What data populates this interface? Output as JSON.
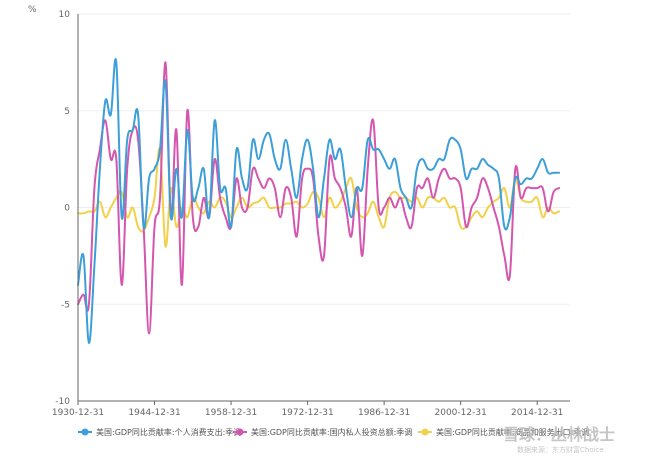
{
  "chart_data": {
    "type": "line",
    "y_unit": "%",
    "ylim": [
      -10,
      10
    ],
    "yticks": [
      -10,
      -5,
      0,
      5,
      10
    ],
    "xlim": [
      1930,
      2020
    ],
    "xtick_labels": [
      "1930-12-31",
      "1944-12-31",
      "1958-12-31",
      "1972-12-31",
      "1986-12-31",
      "2000-12-31",
      "2014-12-31"
    ],
    "xtick_years": [
      1930,
      1944,
      1958,
      1972,
      1986,
      2000,
      2014
    ],
    "grid": "horizontal",
    "legend_position": "bottom",
    "series": [
      {
        "name": "美国:GDP同比贡献率:个人消费支出:季调",
        "color": "#3d9fd8",
        "points": [
          [
            1930,
            -4
          ],
          [
            1931,
            -2.5
          ],
          [
            1932,
            -7
          ],
          [
            1933,
            -3
          ],
          [
            1934,
            2
          ],
          [
            1935,
            5.5
          ],
          [
            1936,
            4.8
          ],
          [
            1937,
            7.5
          ],
          [
            1938,
            -0.5
          ],
          [
            1939,
            3.5
          ],
          [
            1940,
            4
          ],
          [
            1941,
            4.8
          ],
          [
            1942,
            -1
          ],
          [
            1943,
            1.5
          ],
          [
            1944,
            2
          ],
          [
            1945,
            3
          ],
          [
            1946,
            6.5
          ],
          [
            1947,
            -0.5
          ],
          [
            1948,
            2
          ],
          [
            1949,
            -0.5
          ],
          [
            1950,
            4
          ],
          [
            1951,
            0.5
          ],
          [
            1952,
            1
          ],
          [
            1953,
            2
          ],
          [
            1954,
            -0.5
          ],
          [
            1955,
            4.5
          ],
          [
            1956,
            1
          ],
          [
            1957,
            1
          ],
          [
            1958,
            -1
          ],
          [
            1959,
            3
          ],
          [
            1960,
            1.5
          ],
          [
            1961,
            1
          ],
          [
            1962,
            3.5
          ],
          [
            1963,
            2.5
          ],
          [
            1964,
            3.5
          ],
          [
            1965,
            3.8
          ],
          [
            1966,
            2.5
          ],
          [
            1967,
            2
          ],
          [
            1968,
            3.5
          ],
          [
            1969,
            2
          ],
          [
            1970,
            0.5
          ],
          [
            1971,
            2.5
          ],
          [
            1972,
            3.5
          ],
          [
            1973,
            2
          ],
          [
            1974,
            -0.5
          ],
          [
            1975,
            1.5
          ],
          [
            1976,
            3.5
          ],
          [
            1977,
            2.5
          ],
          [
            1978,
            3
          ],
          [
            1979,
            1
          ],
          [
            1980,
            -0.5
          ],
          [
            1981,
            1
          ],
          [
            1982,
            1
          ],
          [
            1983,
            3.5
          ],
          [
            1984,
            3
          ],
          [
            1985,
            3
          ],
          [
            1986,
            2.5
          ],
          [
            1987,
            2
          ],
          [
            1988,
            2.5
          ],
          [
            1989,
            1
          ],
          [
            1990,
            0.5
          ],
          [
            1991,
            0
          ],
          [
            1992,
            2
          ],
          [
            1993,
            2.5
          ],
          [
            1994,
            2
          ],
          [
            1995,
            2
          ],
          [
            1996,
            2.5
          ],
          [
            1997,
            2.5
          ],
          [
            1998,
            3.5
          ],
          [
            1999,
            3.5
          ],
          [
            2000,
            3
          ],
          [
            2001,
            1.5
          ],
          [
            2002,
            2
          ],
          [
            2003,
            2
          ],
          [
            2004,
            2.5
          ],
          [
            2005,
            2.2
          ],
          [
            2006,
            2
          ],
          [
            2007,
            1.5
          ],
          [
            2008,
            -1
          ],
          [
            2009,
            -0.5
          ],
          [
            2010,
            1.5
          ],
          [
            2011,
            1.2
          ],
          [
            2012,
            1.5
          ],
          [
            2013,
            1.5
          ],
          [
            2014,
            2
          ],
          [
            2015,
            2.5
          ],
          [
            2016,
            1.8
          ],
          [
            2017,
            1.8
          ],
          [
            2018,
            1.8
          ]
        ]
      },
      {
        "name": "美国:GDP同比贡献率:国内私人投资总额:季调",
        "color": "#d456ae",
        "points": [
          [
            1930,
            -5
          ],
          [
            1931,
            -4.5
          ],
          [
            1932,
            -5
          ],
          [
            1933,
            1
          ],
          [
            1934,
            3
          ],
          [
            1935,
            4.5
          ],
          [
            1936,
            2.5
          ],
          [
            1937,
            2.5
          ],
          [
            1938,
            -4
          ],
          [
            1939,
            2
          ],
          [
            1940,
            4
          ],
          [
            1941,
            3.5
          ],
          [
            1942,
            -1
          ],
          [
            1943,
            -6.5
          ],
          [
            1944,
            -1
          ],
          [
            1945,
            0.5
          ],
          [
            1946,
            7.5
          ],
          [
            1947,
            -0.5
          ],
          [
            1948,
            4
          ],
          [
            1949,
            -4
          ],
          [
            1950,
            5
          ],
          [
            1951,
            -0.5
          ],
          [
            1952,
            -1
          ],
          [
            1953,
            0.5
          ],
          [
            1954,
            -0.5
          ],
          [
            1955,
            2.5
          ],
          [
            1956,
            0.5
          ],
          [
            1957,
            -0.5
          ],
          [
            1958,
            -1
          ],
          [
            1959,
            1.5
          ],
          [
            1960,
            0
          ],
          [
            1961,
            0
          ],
          [
            1962,
            2
          ],
          [
            1963,
            1.5
          ],
          [
            1964,
            1
          ],
          [
            1965,
            1.5
          ],
          [
            1966,
            1
          ],
          [
            1967,
            -0.5
          ],
          [
            1968,
            1
          ],
          [
            1969,
            0.5
          ],
          [
            1970,
            -1.5
          ],
          [
            1971,
            1.5
          ],
          [
            1972,
            2
          ],
          [
            1973,
            1.5
          ],
          [
            1974,
            -1.5
          ],
          [
            1975,
            -2.5
          ],
          [
            1976,
            2.5
          ],
          [
            1977,
            1.5
          ],
          [
            1978,
            1
          ],
          [
            1979,
            0
          ],
          [
            1980,
            -1.5
          ],
          [
            1981,
            1
          ],
          [
            1982,
            -2.5
          ],
          [
            1983,
            2
          ],
          [
            1984,
            4.5
          ],
          [
            1985,
            0
          ],
          [
            1986,
            0
          ],
          [
            1987,
            0.5
          ],
          [
            1988,
            0
          ],
          [
            1989,
            0.5
          ],
          [
            1990,
            -0.5
          ],
          [
            1991,
            -1
          ],
          [
            1992,
            1
          ],
          [
            1993,
            1
          ],
          [
            1994,
            1.5
          ],
          [
            1995,
            0.5
          ],
          [
            1996,
            1.5
          ],
          [
            1997,
            2
          ],
          [
            1998,
            1.5
          ],
          [
            1999,
            1.5
          ],
          [
            2000,
            1
          ],
          [
            2001,
            -1
          ],
          [
            2002,
            0
          ],
          [
            2003,
            0.5
          ],
          [
            2004,
            1.5
          ],
          [
            2005,
            1
          ],
          [
            2006,
            0
          ],
          [
            2007,
            -1
          ],
          [
            2008,
            -2.5
          ],
          [
            2009,
            -3.5
          ],
          [
            2010,
            2
          ],
          [
            2011,
            0.5
          ],
          [
            2012,
            1
          ],
          [
            2013,
            1
          ],
          [
            2014,
            1
          ],
          [
            2015,
            1
          ],
          [
            2016,
            -0.2
          ],
          [
            2017,
            0.8
          ],
          [
            2018,
            1
          ]
        ]
      },
      {
        "name": "美国:GDP同比贡献率:商品和服务出口:季调",
        "color": "#f2d14a",
        "points": [
          [
            1930,
            -0.3
          ],
          [
            1931,
            -0.3
          ],
          [
            1932,
            -0.2
          ],
          [
            1933,
            -0.2
          ],
          [
            1934,
            0.3
          ],
          [
            1935,
            -0.5
          ],
          [
            1936,
            0
          ],
          [
            1937,
            0.5
          ],
          [
            1938,
            0.8
          ],
          [
            1939,
            -0.5
          ],
          [
            1940,
            0
          ],
          [
            1941,
            -1
          ],
          [
            1942,
            -1.2
          ],
          [
            1943,
            -0.5
          ],
          [
            1944,
            0.5
          ],
          [
            1945,
            3
          ],
          [
            1946,
            -2
          ],
          [
            1947,
            1
          ],
          [
            1948,
            -1
          ],
          [
            1949,
            0
          ],
          [
            1950,
            -0.5
          ],
          [
            1951,
            0.5
          ],
          [
            1952,
            0
          ],
          [
            1953,
            -0.3
          ],
          [
            1954,
            0.3
          ],
          [
            1955,
            0
          ],
          [
            1956,
            0.5
          ],
          [
            1957,
            0.3
          ],
          [
            1958,
            -0.5
          ],
          [
            1959,
            0
          ],
          [
            1960,
            0.5
          ],
          [
            1961,
            0
          ],
          [
            1962,
            0.2
          ],
          [
            1963,
            0.3
          ],
          [
            1964,
            0.5
          ],
          [
            1965,
            0
          ],
          [
            1966,
            0
          ],
          [
            1967,
            0
          ],
          [
            1968,
            0.2
          ],
          [
            1969,
            0.2
          ],
          [
            1970,
            0.3
          ],
          [
            1971,
            0
          ],
          [
            1972,
            0.2
          ],
          [
            1973,
            0.8
          ],
          [
            1974,
            0.5
          ],
          [
            1975,
            -0.5
          ],
          [
            1976,
            0.5
          ],
          [
            1977,
            0
          ],
          [
            1978,
            0.3
          ],
          [
            1979,
            1
          ],
          [
            1980,
            1.5
          ],
          [
            1981,
            0
          ],
          [
            1982,
            -0.5
          ],
          [
            1983,
            -0.3
          ],
          [
            1984,
            0.3
          ],
          [
            1985,
            -0.5
          ],
          [
            1986,
            -1
          ],
          [
            1987,
            0.5
          ],
          [
            1988,
            0.8
          ],
          [
            1989,
            0.5
          ],
          [
            1990,
            0.5
          ],
          [
            1991,
            0.3
          ],
          [
            1992,
            0.5
          ],
          [
            1993,
            0
          ],
          [
            1994,
            0.5
          ],
          [
            1995,
            0.5
          ],
          [
            1996,
            0.3
          ],
          [
            1997,
            0.5
          ],
          [
            1998,
            0
          ],
          [
            1999,
            0
          ],
          [
            2000,
            -1
          ],
          [
            2001,
            -1
          ],
          [
            2002,
            -0.5
          ],
          [
            2003,
            -0.2
          ],
          [
            2004,
            -0.5
          ],
          [
            2005,
            0
          ],
          [
            2006,
            0.3
          ],
          [
            2007,
            0.5
          ],
          [
            2008,
            1
          ],
          [
            2009,
            0
          ],
          [
            2010,
            1.5
          ],
          [
            2011,
            0.5
          ],
          [
            2012,
            0.3
          ],
          [
            2013,
            0.3
          ],
          [
            2014,
            0.5
          ],
          [
            2015,
            -0.5
          ],
          [
            2016,
            0
          ],
          [
            2017,
            -0.3
          ],
          [
            2018,
            -0.2
          ]
        ]
      }
    ]
  },
  "watermark": {
    "main": "雪球：丛林战士",
    "sub": "数据来源：东方财富Choice"
  }
}
